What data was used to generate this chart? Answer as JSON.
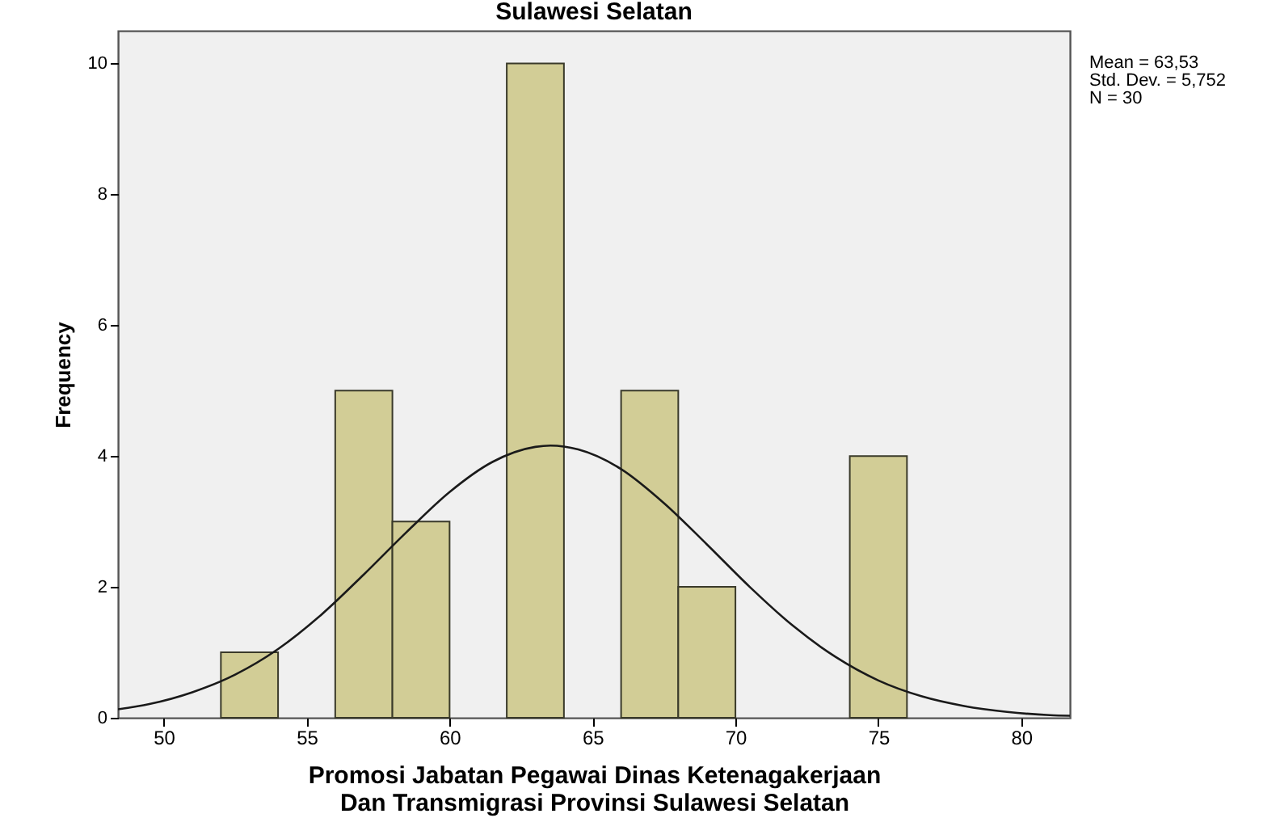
{
  "chart_data": {
    "type": "histogram",
    "title": "Sulawesi Selatan",
    "xlabel": "Promosi Jabatan Pegawai Dinas Ketenagakerjaan Dan Transmigrasi Provinsi Sulawesi Selatan",
    "ylabel": "Frequency",
    "bins": [
      52,
      54,
      56,
      58,
      60,
      62,
      64,
      66,
      68,
      70,
      72,
      74,
      76
    ],
    "values": [
      1,
      0,
      5,
      3,
      0,
      10,
      0,
      5,
      2,
      0,
      0,
      4
    ],
    "color": "#d2cd96",
    "series": [
      {
        "type": "line",
        "color": "#1a1a1a",
        "x": [
          48.4,
          49.5,
          51,
          52.5,
          54,
          55.5,
          57,
          58.5,
          60,
          61.5,
          63,
          63.53,
          64.5,
          66,
          67.5,
          69,
          70.5,
          72,
          73.5,
          75,
          76.5,
          78,
          79.5,
          81,
          81.7
        ],
        "values": [
          0.13,
          0.21,
          0.39,
          0.66,
          1.05,
          1.57,
          2.19,
          2.84,
          3.45,
          3.91,
          4.14,
          4.16,
          4.1,
          3.8,
          3.28,
          2.65,
          2.0,
          1.41,
          0.93,
          0.57,
          0.33,
          0.18,
          0.09,
          0.04,
          0.03
        ]
      }
    ],
    "xlim": [
      48.4,
      81.7
    ],
    "xticks": [
      50,
      55,
      60,
      65,
      70,
      75,
      80
    ],
    "ylim": [
      0,
      10.5
    ],
    "yticks": [
      0,
      2,
      4,
      6,
      8,
      10
    ],
    "grid": false,
    "annotations": [
      "Mean = 63,53",
      "Std. Dev. = 5,752",
      "N = 30"
    ]
  }
}
